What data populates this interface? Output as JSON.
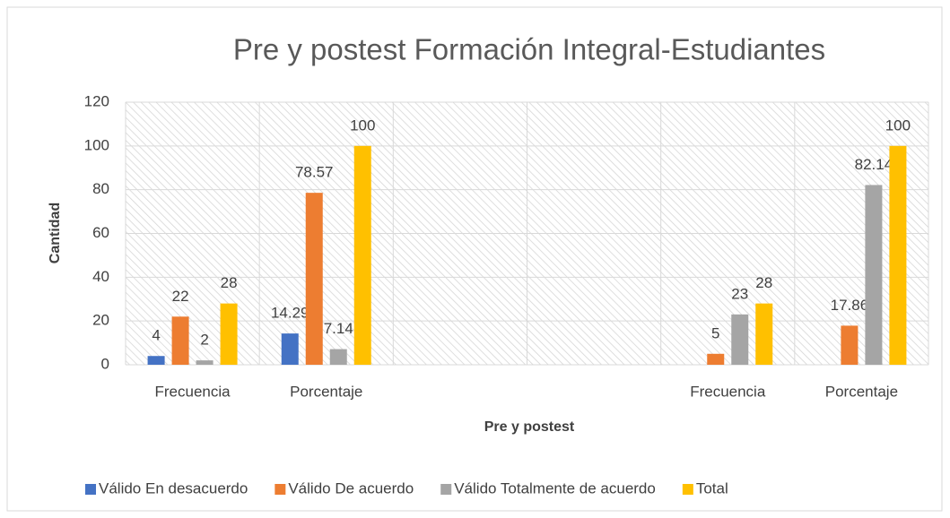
{
  "chart_data": {
    "type": "bar",
    "title": "Pre y postest Formación Integral-Estudiantes",
    "x_label": "Pre y postest",
    "y_label": "Cantidad",
    "categories": [
      "Frecuencia",
      "Porcentaje",
      null,
      null,
      "Frecuencia",
      "Porcentaje"
    ],
    "series": [
      {
        "name": "Válido En desacuerdo",
        "color": "#4472c4",
        "values": [
          4,
          14.29,
          null,
          null,
          null,
          null
        ]
      },
      {
        "name": "Válido De acuerdo",
        "color": "#ed7d31",
        "values": [
          22,
          78.57,
          null,
          null,
          5,
          17.86
        ]
      },
      {
        "name": "Válido Totalmente de acuerdo",
        "color": "#a5a5a5",
        "values": [
          2,
          7.14,
          null,
          null,
          23,
          82.14
        ]
      },
      {
        "name": "Total",
        "color": "#ffc000",
        "values": [
          28,
          100,
          null,
          null,
          28,
          100
        ]
      }
    ],
    "ylim": [
      0,
      120
    ],
    "yticks": [
      0,
      20,
      40,
      60,
      80,
      100,
      120
    ],
    "grid": true,
    "legend": "bottom"
  }
}
